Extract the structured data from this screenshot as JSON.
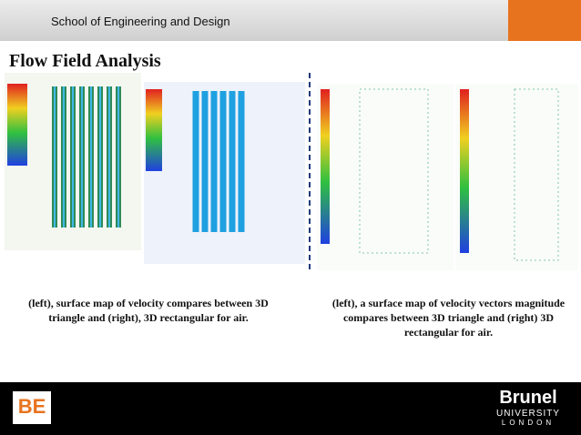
{
  "header": {
    "title": "School of Engineering and Design"
  },
  "slide": {
    "title": "Flow Field Analysis",
    "captions": [
      "(left), surface map of velocity compares between 3D triangle and (right), 3D rectangular for air.",
      "(left), a surface map of velocity vectors magnitude compares between 3D triangle and (right) 3D rectangular for air."
    ]
  },
  "footer": {
    "logo_left": "BE",
    "logo_right": {
      "name": "Brunel",
      "line1": "UNIVERSITY",
      "line2": "LONDON"
    }
  }
}
